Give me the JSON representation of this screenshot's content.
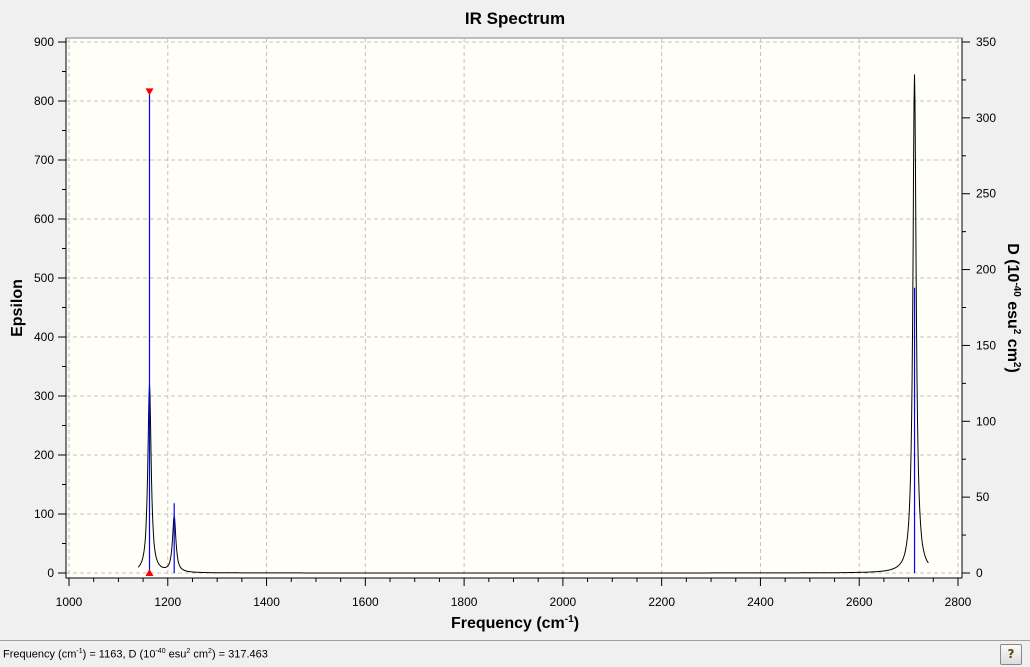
{
  "chart_data": {
    "type": "line",
    "title": "IR Spectrum",
    "xlabel": "Frequency (cm-1)",
    "ylabel_left": "Epsilon",
    "ylabel_right": "D (10-40 esu2 cm2)",
    "xlim": [
      1000,
      2800
    ],
    "ylim_left": [
      0,
      900
    ],
    "ylim_right": [
      0,
      350
    ],
    "x_ticks": [
      1000,
      1200,
      1400,
      1600,
      1800,
      2000,
      2200,
      2400,
      2600,
      2800
    ],
    "y_ticks_left": [
      0,
      100,
      200,
      300,
      400,
      500,
      600,
      700,
      800,
      900
    ],
    "y_ticks_right": [
      0,
      50,
      100,
      150,
      200,
      250,
      300,
      350
    ],
    "grid": true,
    "sticks": [
      {
        "frequency": 1163,
        "D": 317.463,
        "selected": true
      },
      {
        "frequency": 1213,
        "D": 46
      },
      {
        "frequency": 2712,
        "D": 188
      }
    ],
    "spectrum_peaks_epsilon": [
      {
        "frequency": 1163,
        "epsilon": 320
      },
      {
        "frequency": 1213,
        "epsilon": 95
      },
      {
        "frequency": 2712,
        "epsilon": 845
      }
    ],
    "spectrum_range": [
      1140,
      2740
    ],
    "colors": {
      "curve": "#000000",
      "sticks": "#0000ff",
      "marker": "#ff0000",
      "plot_bg": "#fffff8",
      "grid": "#c0c0c0"
    }
  },
  "status": {
    "text_prefix": "Frequency (cm",
    "sup1": "-1",
    "text_mid1": ") = 1163, D (10",
    "sup2": "-40",
    "text_mid2": " esu",
    "sup3": "2",
    "text_mid3": " cm",
    "sup4": "2",
    "text_end": ") = 317.463",
    "help_label": "?"
  }
}
